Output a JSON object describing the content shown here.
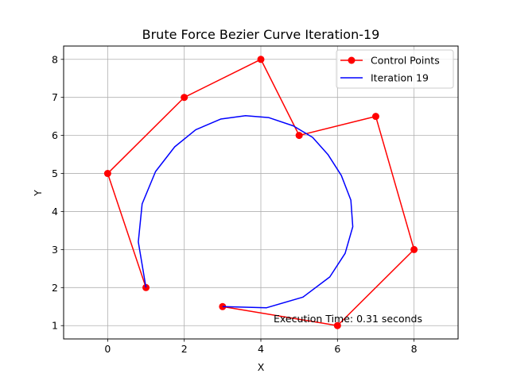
{
  "chart_data": {
    "type": "line",
    "title": "Brute Force Bezier Curve Iteration-19",
    "xlabel": "X",
    "ylabel": "Y",
    "xlim": [
      -1.15,
      9.15
    ],
    "ylim": [
      0.65,
      8.35
    ],
    "xticks": [
      0,
      2,
      4,
      6,
      8
    ],
    "yticks": [
      1,
      2,
      3,
      4,
      5,
      6,
      7,
      8
    ],
    "grid": true,
    "legend_position": "top-right",
    "series": [
      {
        "name": "Control Points",
        "color": "#ff0000",
        "marker": "circle",
        "x": [
          1,
          0,
          2,
          4,
          5,
          7,
          8,
          6,
          3
        ],
        "y": [
          2,
          5,
          7,
          8,
          6,
          6.5,
          3,
          1,
          1.5
        ]
      },
      {
        "name": "Iteration 19",
        "color": "#0000ff",
        "marker": "none",
        "x": [
          1.0,
          0.8,
          0.9,
          1.25,
          1.75,
          2.3,
          2.95,
          3.6,
          4.2,
          4.85,
          5.35,
          5.75,
          6.1,
          6.35,
          6.4,
          6.2,
          5.8,
          5.1,
          4.15,
          3.0
        ],
        "y": [
          2.0,
          3.2,
          4.2,
          5.05,
          5.7,
          6.15,
          6.43,
          6.52,
          6.47,
          6.25,
          5.95,
          5.5,
          4.95,
          4.3,
          3.6,
          2.9,
          2.28,
          1.75,
          1.47,
          1.5
        ]
      }
    ],
    "annotation": "Execution Time: 0.31 seconds"
  }
}
